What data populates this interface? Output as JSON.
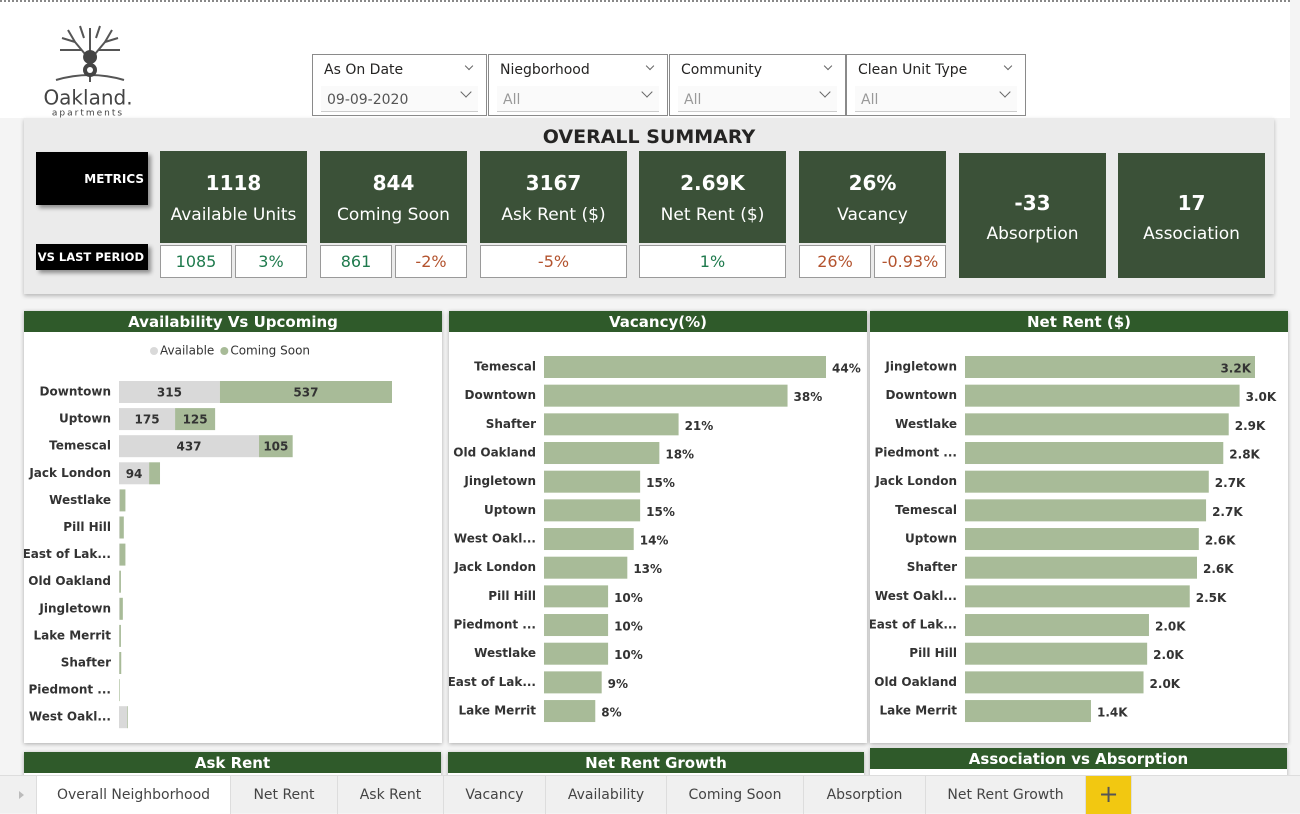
{
  "logo": {
    "name": "Oakland.",
    "tagline": "apartments"
  },
  "filters": [
    {
      "label": "As On Date",
      "value": "09-09-2020"
    },
    {
      "label": "Niegborhood",
      "value": "All"
    },
    {
      "label": "Community",
      "value": "All"
    },
    {
      "label": "Clean Unit Type",
      "value": "All"
    }
  ],
  "summary": {
    "title": "OVERALL SUMMARY",
    "metrics_label": "METRICS",
    "comparison_label": "VS LAST PERIOD",
    "cards": [
      {
        "value": "1118",
        "label": "Available Units",
        "compare": [
          "1085",
          "3%"
        ]
      },
      {
        "value": "844",
        "label": "Coming Soon",
        "compare": [
          "861",
          "-2%"
        ]
      },
      {
        "value": "3167",
        "label": "Ask Rent ($)",
        "compare": [
          "-5%"
        ]
      },
      {
        "value": "2.69K",
        "label": "Net Rent ($)",
        "compare": [
          "1%"
        ]
      },
      {
        "value": "26%",
        "label": "Vacancy",
        "compare": [
          "26%",
          "-0.93%"
        ]
      },
      {
        "value": "-33",
        "label": "Absorption"
      },
      {
        "value": "17",
        "label": "Association"
      }
    ]
  },
  "chart_data": [
    {
      "type": "bar",
      "orientation": "horizontal",
      "stacked": true,
      "title": "Availability Vs Upcoming",
      "legend": "top",
      "categories": [
        "Downtown",
        "Uptown",
        "Temescal",
        "Jack London",
        "Westlake",
        "Pill Hill",
        "East of Lak...",
        "Old Oakland",
        "Jingletown",
        "Lake Merrit",
        "Shafter",
        "Piedmont ...",
        "West Oakl..."
      ],
      "series": [
        {
          "name": "Available",
          "color": "#d9d9d9",
          "values": [
            315,
            175,
            437,
            94,
            3,
            2,
            2,
            1,
            2,
            1,
            1,
            0,
            26
          ]
        },
        {
          "name": "Coming Soon",
          "color": "#a8bb98",
          "values": [
            537,
            125,
            105,
            34,
            17,
            13,
            18,
            5,
            10,
            5,
            6,
            2,
            2
          ]
        }
      ]
    },
    {
      "type": "bar",
      "orientation": "horizontal",
      "title": "Vacancy(%)",
      "color": "#a8bb98",
      "categories": [
        "Temescal",
        "Downtown",
        "Shafter",
        "Old Oakland",
        "Jingletown",
        "Uptown",
        "West Oakl...",
        "Jack London",
        "Pill Hill",
        "Piedmont ...",
        "Westlake",
        "East of Lak...",
        "Lake Merrit"
      ],
      "values": [
        44,
        38,
        21,
        18,
        15,
        15,
        14,
        13,
        10,
        10,
        10,
        9,
        8
      ],
      "value_labels": [
        "44%",
        "38%",
        "21%",
        "18%",
        "15%",
        "15%",
        "14%",
        "13%",
        "10%",
        "10%",
        "10%",
        "9%",
        "8%"
      ]
    },
    {
      "type": "bar",
      "orientation": "horizontal",
      "title": "Net Rent ($)",
      "color": "#a8bb98",
      "categories": [
        "Jingletown",
        "Downtown",
        "Westlake",
        "Piedmont ...",
        "Jack London",
        "Temescal",
        "Uptown",
        "Shafter",
        "West Oakl...",
        "East of Lak...",
        "Pill Hill",
        "Old Oakland",
        "Lake Merrit"
      ],
      "values": [
        3200,
        3030,
        2910,
        2850,
        2690,
        2660,
        2580,
        2560,
        2480,
        2030,
        2010,
        1970,
        1390
      ],
      "value_labels": [
        "3.2K",
        "3.0K",
        "2.9K",
        "2.8K",
        "2.7K",
        "2.7K",
        "2.6K",
        "2.6K",
        "2.5K",
        "2.0K",
        "2.0K",
        "2.0K",
        "1.4K"
      ]
    }
  ],
  "lower_panels": [
    "Ask Rent",
    "Net Rent Growth",
    "Association vs Absorption"
  ],
  "tabs": [
    "Overall Neighborhood",
    "Net Rent",
    "Ask Rent",
    "Vacancy",
    "Availability",
    "Coming Soon",
    "Absorption",
    "Net Rent Growth"
  ]
}
